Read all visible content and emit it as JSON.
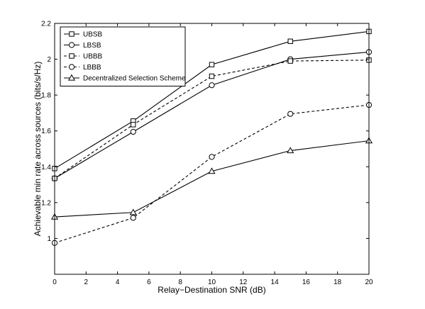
{
  "chart_data": {
    "type": "line",
    "xlabel": "Relay−Destination SNR (dB)",
    "ylabel": "Achievable min rate across sources (bits/s/Hz)",
    "xlim": [
      0,
      20
    ],
    "ylim": [
      0.8,
      2.2
    ],
    "xticks": [
      "0",
      "2",
      "4",
      "6",
      "8",
      "10",
      "12",
      "14",
      "16",
      "18",
      "20"
    ],
    "yticks": [
      "1",
      "1.2",
      "1.4",
      "1.6",
      "1.8",
      "2",
      "2.2"
    ],
    "grid": false,
    "legend_position": "top-left",
    "x": [
      0,
      5,
      10,
      15,
      20
    ],
    "series": [
      {
        "name": "UBSB",
        "marker": "square",
        "line_style": "solid",
        "values": [
          1.39,
          1.655,
          1.97,
          2.1,
          2.155
        ]
      },
      {
        "name": "LBSB",
        "marker": "circle",
        "line_style": "solid",
        "values": [
          1.335,
          1.595,
          1.855,
          2.0,
          2.04
        ]
      },
      {
        "name": "UBBB",
        "marker": "square",
        "line_style": "dashed",
        "values": [
          1.335,
          1.635,
          1.905,
          1.99,
          1.995
        ]
      },
      {
        "name": "LBBB",
        "marker": "circle",
        "line_style": "dashed",
        "values": [
          0.975,
          1.115,
          1.455,
          1.695,
          1.745
        ]
      },
      {
        "name": "Decentralized Selection Scheme",
        "marker": "triangle",
        "line_style": "solid",
        "values": [
          1.12,
          1.145,
          1.375,
          1.49,
          1.545
        ]
      }
    ]
  }
}
